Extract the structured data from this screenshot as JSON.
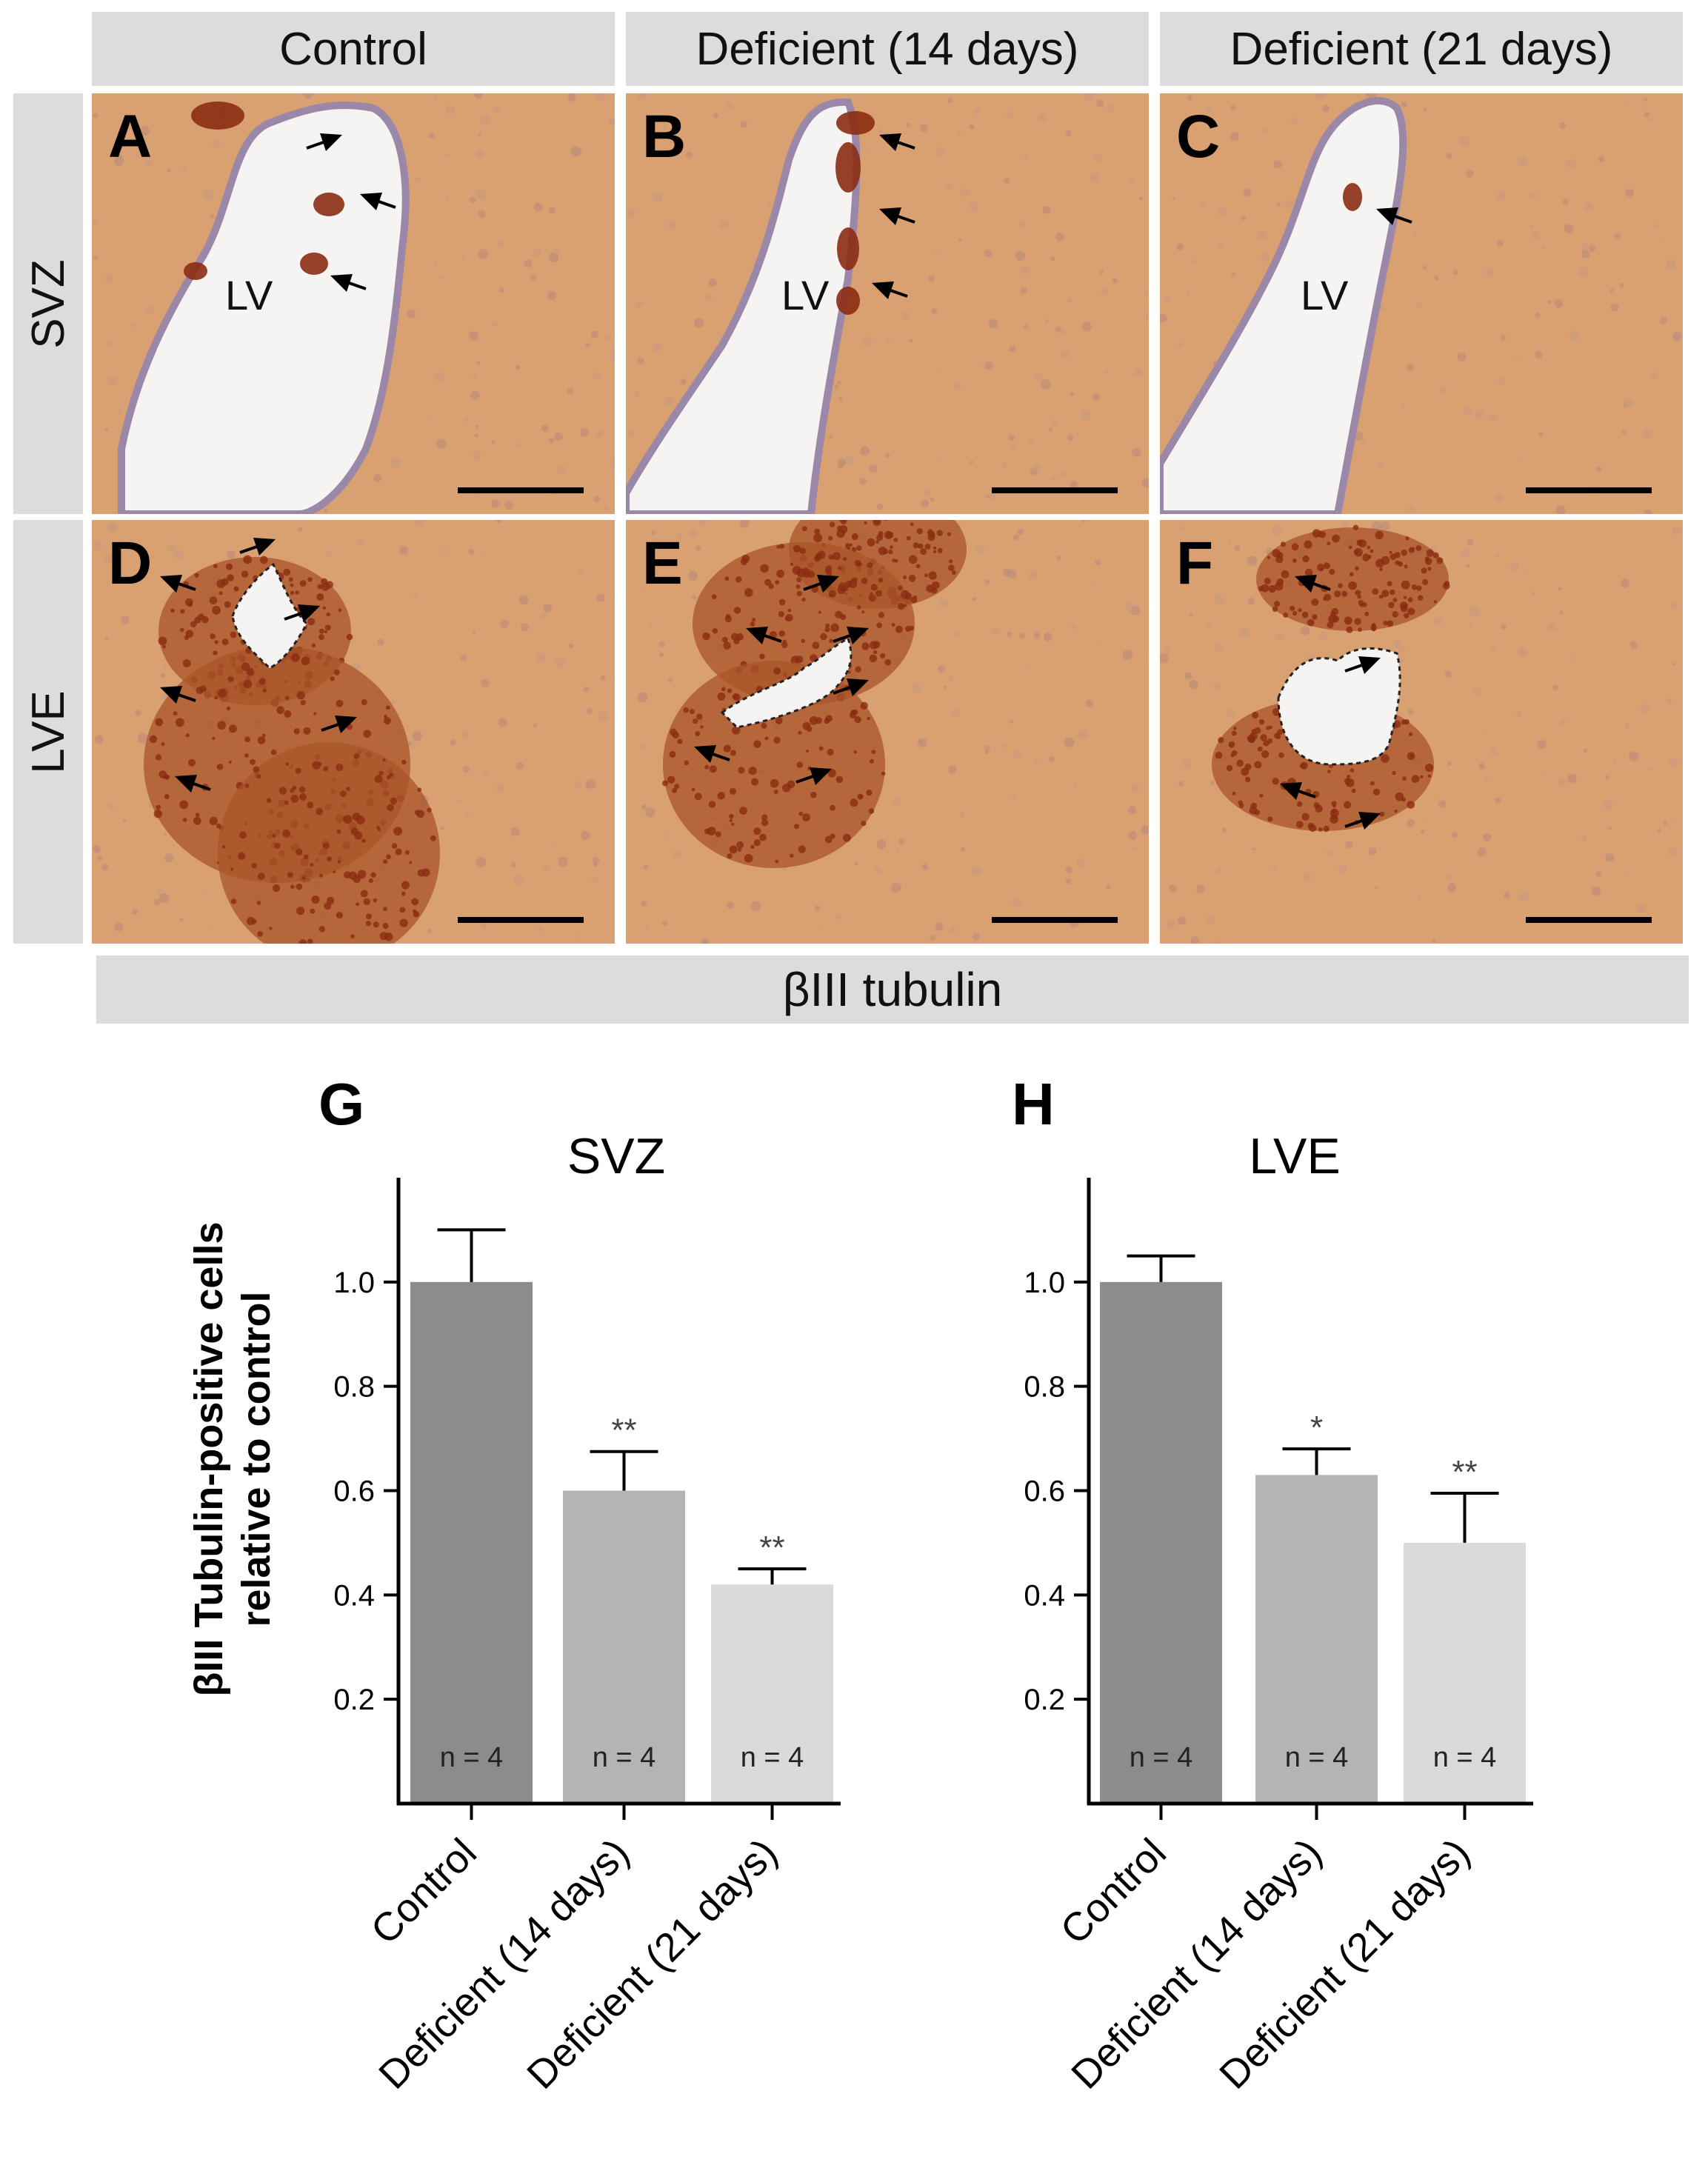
{
  "column_headers": [
    "Control",
    "Deficient (14 days)",
    "Deficient (21 days)"
  ],
  "row_headers": [
    "SVZ",
    "LVE"
  ],
  "panels": [
    {
      "letter": "A",
      "label": "LV"
    },
    {
      "letter": "B",
      "label": "LV"
    },
    {
      "letter": "C",
      "label": "LV"
    },
    {
      "letter": "D",
      "label": ""
    },
    {
      "letter": "E",
      "label": ""
    },
    {
      "letter": "F",
      "label": ""
    }
  ],
  "stain_label": "βIII tubulin",
  "graphs": [
    {
      "letter": "G"
    },
    {
      "letter": "H"
    }
  ],
  "y_axis_label_line1": "βIII Tubulin-positive cells",
  "y_axis_label_line2": "relative to control",
  "colors": {
    "header_bg": "#dcdcdc",
    "tissue": "#d9a171",
    "stain": "#8b2c12",
    "bar_control": "#8c8c8c",
    "bar_14": "#b4b4b4",
    "bar_21": "#dadada"
  },
  "chart_data": [
    {
      "type": "bar",
      "title": "SVZ",
      "ylabel": "βIII Tubulin-positive cells relative to control",
      "categories": [
        "Control",
        "Deficient (14 days)",
        "Deficient (21 days)"
      ],
      "values": [
        1.0,
        0.6,
        0.42
      ],
      "errors": [
        0.1,
        0.075,
        0.03
      ],
      "significance": [
        "",
        "**",
        "**"
      ],
      "n_labels": [
        "n = 4",
        "n = 4",
        "n = 4"
      ],
      "yticks": [
        "0.2",
        "0.4",
        "0.6",
        "0.8",
        "1.0"
      ],
      "ylim": [
        0,
        1.2
      ]
    },
    {
      "type": "bar",
      "title": "LVE",
      "ylabel": "βIII Tubulin-positive cells relative to control",
      "categories": [
        "Control",
        "Deficient (14 days)",
        "Deficient (21 days)"
      ],
      "values": [
        1.0,
        0.63,
        0.5
      ],
      "errors": [
        0.05,
        0.05,
        0.095
      ],
      "significance": [
        "",
        "*",
        "**"
      ],
      "n_labels": [
        "n = 4",
        "n = 4",
        "n = 4"
      ],
      "yticks": [
        "0.2",
        "0.4",
        "0.6",
        "0.8",
        "1.0"
      ],
      "ylim": [
        0,
        1.2
      ]
    }
  ]
}
